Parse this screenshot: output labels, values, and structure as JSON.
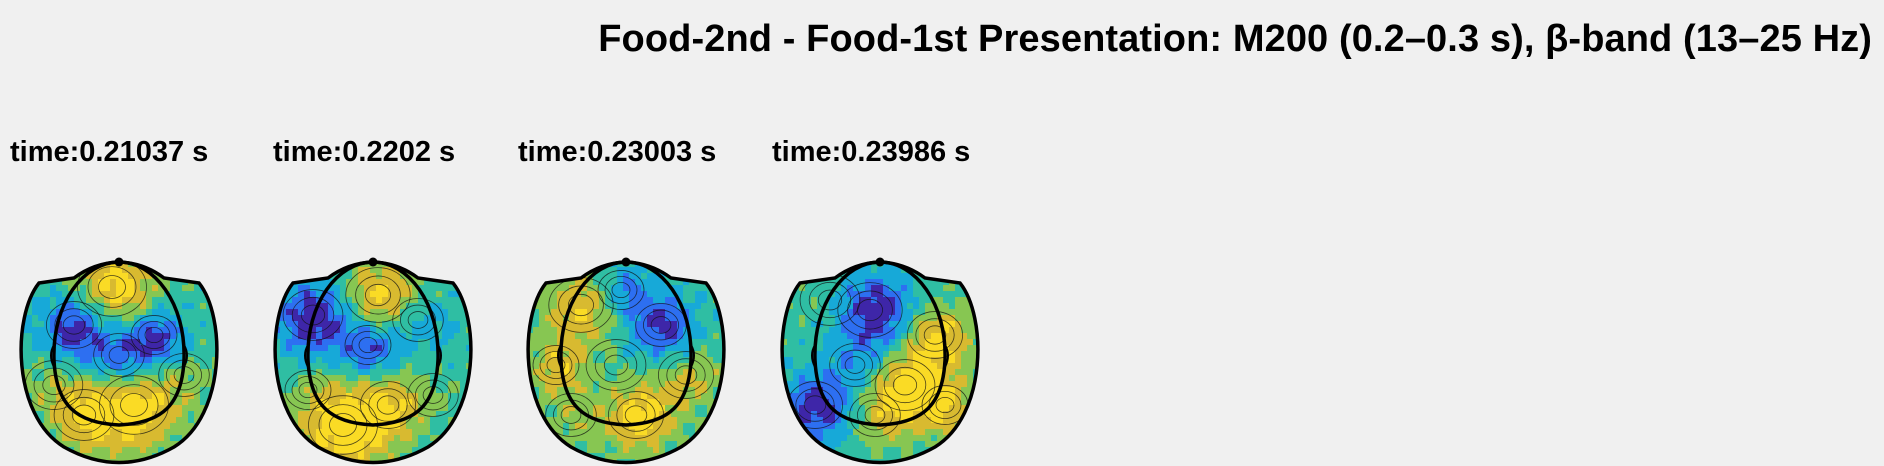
{
  "figure": {
    "title": "Food-2nd - Food-1st Presentation: M200 (0.2–0.3 s), β-band (13–25 Hz)"
  },
  "panels": [
    {
      "label": "time:0.21037 s"
    },
    {
      "label": "time:0.2202 s"
    },
    {
      "label": "time:0.23003 s"
    },
    {
      "label": "time:0.23986 s"
    }
  ],
  "colormap": [
    "#3e26a8",
    "#2d6ff1",
    "#17a9d8",
    "#2fbea3",
    "#87c652",
    "#d8ba30",
    "#fadb25"
  ]
}
